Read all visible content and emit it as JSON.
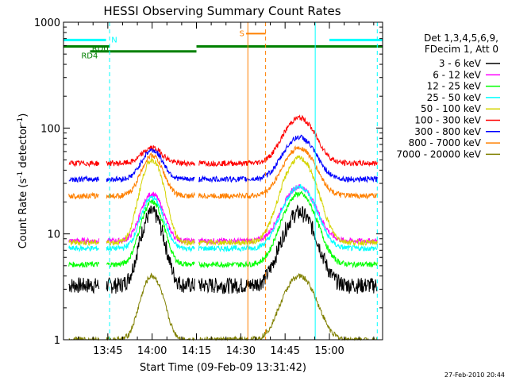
{
  "chart_data": {
    "type": "line",
    "title": "HESSI Observing Summary Count Rates",
    "xlabel": "Start Time (09-Feb-09 13:31:42)",
    "ylabel": "Count Rate (s",
    "ylabel_sup1": "-1",
    "ylabel_mid": " detector",
    "ylabel_sup2": "-1",
    "ylabel_end": ")",
    "yscale": "log",
    "ylim": [
      1,
      1000
    ],
    "xlim_minutes": [
      13.5,
      15.3
    ],
    "x_ticks": [
      {
        "label": "13:45",
        "value": 13.75
      },
      {
        "label": "14:00",
        "value": 14.0
      },
      {
        "label": "14:15",
        "value": 14.25
      },
      {
        "label": "14:30",
        "value": 14.5
      },
      {
        "label": "14:45",
        "value": 14.75
      },
      {
        "label": "15:00",
        "value": 15.0
      }
    ],
    "y_ticks": [
      {
        "label": "1",
        "value": 1
      },
      {
        "label": "10",
        "value": 10
      },
      {
        "label": "100",
        "value": 100
      },
      {
        "label": "1000",
        "value": 1000
      }
    ],
    "legend": {
      "position": "right",
      "header": [
        "Det 1,3,4,5,6,9,",
        "FDecim 1, Att 0"
      ]
    },
    "series": [
      {
        "name": "3 - 6 keV",
        "color": "#000000"
      },
      {
        "name": "6 - 12 keV",
        "color": "#ff00ff"
      },
      {
        "name": "12 - 25 keV",
        "color": "#00ff00"
      },
      {
        "name": "25 - 50 keV",
        "color": "#00ffff"
      },
      {
        "name": "50 - 100 keV",
        "color": "#d4d400"
      },
      {
        "name": "100 - 300 keV",
        "color": "#ff0000"
      },
      {
        "name": "300 - 800 keV",
        "color": "#0000ff"
      },
      {
        "name": "800 - 7000 keV",
        "color": "#ff8000"
      },
      {
        "name": "7000 - 20000 keV",
        "color": "#808000"
      }
    ],
    "annotations": [
      {
        "text": "N",
        "color": "#00ffff"
      },
      {
        "text": "RD0",
        "color": "#008000"
      },
      {
        "text": "RD4",
        "color": "#008000"
      },
      {
        "text": "S",
        "color": "#ff8000"
      }
    ],
    "timestamp": "27-Feb-2010 20:44"
  }
}
